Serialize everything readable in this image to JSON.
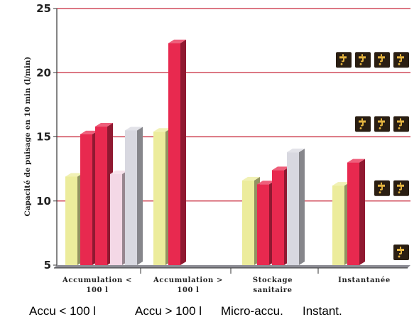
{
  "chart_data": {
    "type": "bar",
    "ylabel": "Capacité de puisage en 10 min (l/min)",
    "ylim": [
      5,
      25
    ],
    "yticks": [
      "5",
      "10",
      "15",
      "20",
      "25"
    ],
    "grid": true,
    "categories": [
      [
        "Accumulation <",
        "100 l"
      ],
      [
        "Accumulation >",
        "100 l"
      ],
      [
        "Stockage",
        "sanitaire"
      ],
      [
        "Instantanée"
      ]
    ],
    "groups": [
      {
        "bars": [
          {
            "value": 11.9,
            "color": "yellow"
          },
          {
            "value": 15.2,
            "color": "red"
          },
          {
            "value": 15.8,
            "color": "red"
          },
          {
            "value": 12.1,
            "color": "pink"
          },
          {
            "value": 15.5,
            "color": "gray"
          }
        ]
      },
      {
        "bars": [
          {
            "value": 15.4,
            "color": "yellow"
          },
          {
            "value": 22.3,
            "color": "red"
          }
        ]
      },
      {
        "bars": [
          {
            "value": 11.6,
            "color": "yellow"
          },
          {
            "value": 11.3,
            "color": "red"
          },
          {
            "value": 12.4,
            "color": "red"
          },
          {
            "value": 13.8,
            "color": "gray"
          }
        ]
      },
      {
        "bars": [
          {
            "value": 11.2,
            "color": "yellow"
          },
          {
            "value": 13.0,
            "color": "red"
          }
        ]
      }
    ],
    "comfort_icons": [
      {
        "value": 21,
        "count": 4
      },
      {
        "value": 16,
        "count": 3
      },
      {
        "value": 11,
        "count": 2
      },
      {
        "value": 6,
        "count": 1
      }
    ],
    "colors": {
      "yellow": "#ecec9c",
      "red": "#e8294f",
      "pink": "#f4d8e6",
      "gray": "#d8d8e0",
      "grid": "#c8283a",
      "icon_bg": "#2a1e12",
      "icon_fg": "#e4b440"
    },
    "icon_name": "faucet-icon"
  },
  "bottom_labels": [
    "Accu < 100 l",
    "Accu > 100 l",
    "Micro-accu.",
    "Instant."
  ]
}
